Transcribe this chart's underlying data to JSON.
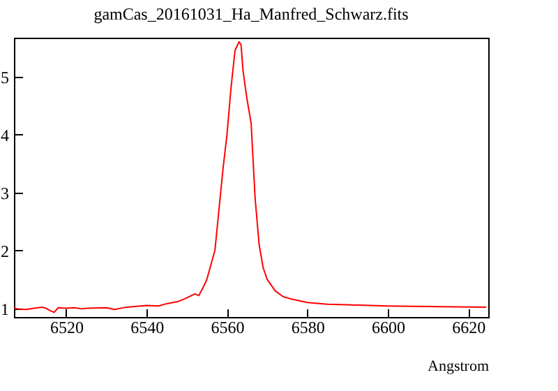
{
  "chart_data": {
    "type": "line",
    "title": "gamCas_20161031_Ha_Manfred_Schwarz.fits",
    "xlabel": "Angstrom",
    "x": [
      6507,
      6508,
      6510,
      6512,
      6514,
      6515,
      6516,
      6517,
      6518,
      6520,
      6522,
      6524,
      6525,
      6530,
      6532,
      6535,
      6540,
      6543,
      6545,
      6548,
      6550,
      6552,
      6553,
      6554,
      6555,
      6556,
      6557,
      6558,
      6559,
      6560,
      6561,
      6562,
      6563,
      6563.5,
      6564,
      6565,
      6566,
      6567,
      6568,
      6569,
      6570,
      6572,
      6574,
      6575,
      6576,
      6580,
      6585,
      6590,
      6600,
      6610,
      6624.5
    ],
    "series": [
      {
        "color": "#ff0000",
        "values": [
          1.0,
          0.99,
          0.98,
          1.0,
          1.02,
          1.0,
          0.96,
          0.93,
          1.01,
          1.0,
          1.01,
          0.99,
          1.0,
          1.01,
          0.98,
          1.02,
          1.05,
          1.04,
          1.08,
          1.12,
          1.18,
          1.25,
          1.22,
          1.35,
          1.5,
          1.75,
          2.0,
          2.7,
          3.4,
          4.0,
          4.8,
          5.45,
          5.6,
          5.55,
          5.1,
          4.6,
          4.2,
          2.9,
          2.1,
          1.7,
          1.5,
          1.3,
          1.2,
          1.18,
          1.16,
          1.1,
          1.07,
          1.06,
          1.04,
          1.03,
          1.02
        ]
      }
    ],
    "xlim": [
      6507,
      6625
    ],
    "ylim": [
      0.85,
      5.67
    ],
    "xticks": [
      6520,
      6540,
      6560,
      6580,
      6600,
      6620
    ],
    "yticks": [
      1,
      2,
      3,
      4,
      5
    ],
    "grid": false,
    "line_style": "solid"
  }
}
